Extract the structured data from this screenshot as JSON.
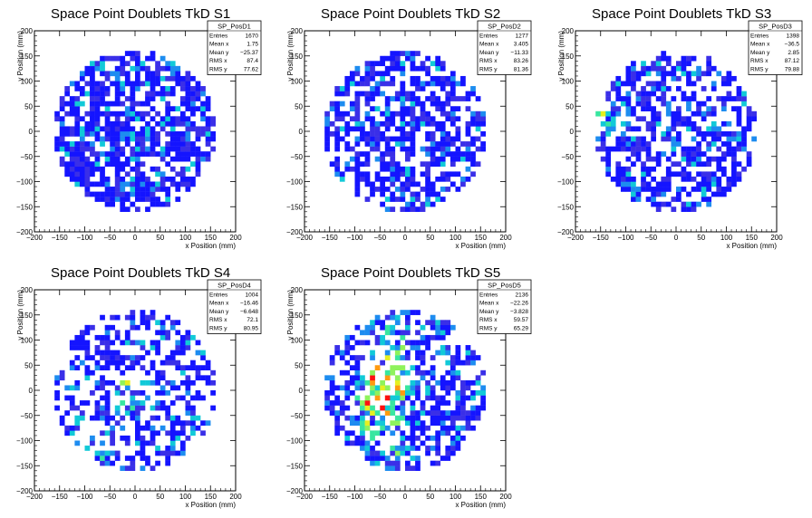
{
  "chart_data": [
    {
      "type": "heatmap",
      "title": "Space Point Doublets TkD S1",
      "xlabel": "x Position (mm)",
      "ylabel": "y Position (mm)",
      "xlim": [
        -200,
        200
      ],
      "ylim": [
        -200,
        200
      ],
      "xticks": [
        "−200",
        "−150",
        "−100",
        "−50",
        "0",
        "50",
        "100",
        "150",
        "200"
      ],
      "yticks": [
        "200",
        "150",
        "100",
        "50",
        "0",
        "−50",
        "−100",
        "−150",
        "−200"
      ],
      "fill_radius_mm": 160,
      "stats": {
        "name": "SP_PosD1",
        "rows": [
          {
            "label": "Entries",
            "value": "1670"
          },
          {
            "label": "Mean x",
            "value": "1.75"
          },
          {
            "label": "Mean y",
            "value": "−25.37"
          },
          {
            "label": "RMS x",
            "value": "87.4"
          },
          {
            "label": "RMS y",
            "value": "77.62"
          }
        ]
      },
      "hot_spots": [],
      "empty_fraction": 0.28
    },
    {
      "type": "heatmap",
      "title": "Space Point Doublets TkD S2",
      "xlabel": "x Position (mm)",
      "ylabel": "y Position (mm)",
      "xlim": [
        -200,
        200
      ],
      "ylim": [
        -200,
        200
      ],
      "xticks": [
        "−200",
        "−150",
        "−100",
        "−50",
        "0",
        "50",
        "100",
        "150",
        "200"
      ],
      "yticks": [
        "200",
        "150",
        "100",
        "50",
        "0",
        "−50",
        "−100",
        "−150",
        "−200"
      ],
      "fill_radius_mm": 160,
      "stats": {
        "name": "SP_PosD2",
        "rows": [
          {
            "label": "Entries",
            "value": "1277"
          },
          {
            "label": "Mean x",
            "value": "3.405"
          },
          {
            "label": "Mean y",
            "value": "−11.33"
          },
          {
            "label": "RMS x",
            "value": "83.26"
          },
          {
            "label": "RMS y",
            "value": "81.36"
          }
        ]
      },
      "hot_spots": [],
      "empty_fraction": 0.42
    },
    {
      "type": "heatmap",
      "title": "Space Point Doublets TkD S3",
      "xlabel": "x Position (mm)",
      "ylabel": "y Position (mm)",
      "xlim": [
        -200,
        200
      ],
      "ylim": [
        -200,
        200
      ],
      "xticks": [
        "−200",
        "−150",
        "−100",
        "−50",
        "0",
        "50",
        "100",
        "150",
        "200"
      ],
      "yticks": [
        "200",
        "150",
        "100",
        "50",
        "0",
        "−50",
        "−100",
        "−150",
        "−200"
      ],
      "fill_radius_mm": 160,
      "stats": {
        "name": "SP_PosD3",
        "rows": [
          {
            "label": "Entries",
            "value": "1398"
          },
          {
            "label": "Mean x",
            "value": "−36.5"
          },
          {
            "label": "Mean y",
            "value": "2.85"
          },
          {
            "label": "RMS x",
            "value": "87.12"
          },
          {
            "label": "RMS y",
            "value": "79.88"
          }
        ]
      },
      "hot_spots": [
        {
          "x": -140,
          "y": 20
        }
      ],
      "empty_fraction": 0.4
    },
    {
      "type": "heatmap",
      "title": "Space Point Doublets TkD S4",
      "xlabel": "x Position (mm)",
      "ylabel": "y Position (mm)",
      "xlim": [
        -200,
        200
      ],
      "ylim": [
        -200,
        200
      ],
      "xticks": [
        "−200",
        "−150",
        "−100",
        "−50",
        "0",
        "50",
        "100",
        "150",
        "200"
      ],
      "yticks": [
        "200",
        "150",
        "100",
        "50",
        "0",
        "−50",
        "−100",
        "−150",
        "−200"
      ],
      "fill_radius_mm": 160,
      "stats": {
        "name": "SP_PosD4",
        "rows": [
          {
            "label": "Entries",
            "value": "1004"
          },
          {
            "label": "Mean x",
            "value": "−16.46"
          },
          {
            "label": "Mean y",
            "value": "−6.648"
          },
          {
            "label": "RMS x",
            "value": "72.1"
          },
          {
            "label": "RMS y",
            "value": "80.95"
          }
        ]
      },
      "hot_spots": [
        {
          "x": -90,
          "y": -120
        },
        {
          "x": 0,
          "y": -10
        }
      ],
      "empty_fraction": 0.52
    },
    {
      "type": "heatmap",
      "title": "Space Point Doublets TkD S5",
      "xlabel": "x Position (mm)",
      "ylabel": "y Position (mm)",
      "xlim": [
        -200,
        200
      ],
      "ylim": [
        -200,
        200
      ],
      "xticks": [
        "−200",
        "−150",
        "−100",
        "−50",
        "0",
        "50",
        "100",
        "150",
        "200"
      ],
      "yticks": [
        "200",
        "150",
        "100",
        "50",
        "0",
        "−50",
        "−100",
        "−150",
        "−200"
      ],
      "fill_radius_mm": 160,
      "stats": {
        "name": "SP_PosD5",
        "rows": [
          {
            "label": "Entries",
            "value": "2136"
          },
          {
            "label": "Mean x",
            "value": "−22.26"
          },
          {
            "label": "Mean y",
            "value": "−3.828"
          },
          {
            "label": "RMS x",
            "value": "59.57"
          },
          {
            "label": "RMS y",
            "value": "65.29"
          }
        ]
      },
      "hot_spots": [
        {
          "x": -50,
          "y": 0
        },
        {
          "x": -60,
          "y": -50
        },
        {
          "x": -20,
          "y": 30
        }
      ],
      "empty_fraction": 0.45
    }
  ],
  "palette": [
    "#1414ff",
    "#3a2fe8",
    "#1d8cf0",
    "#11c9d8",
    "#38e6a0",
    "#8ef25c",
    "#e6f020",
    "#ff9a10",
    "#ff1010"
  ]
}
